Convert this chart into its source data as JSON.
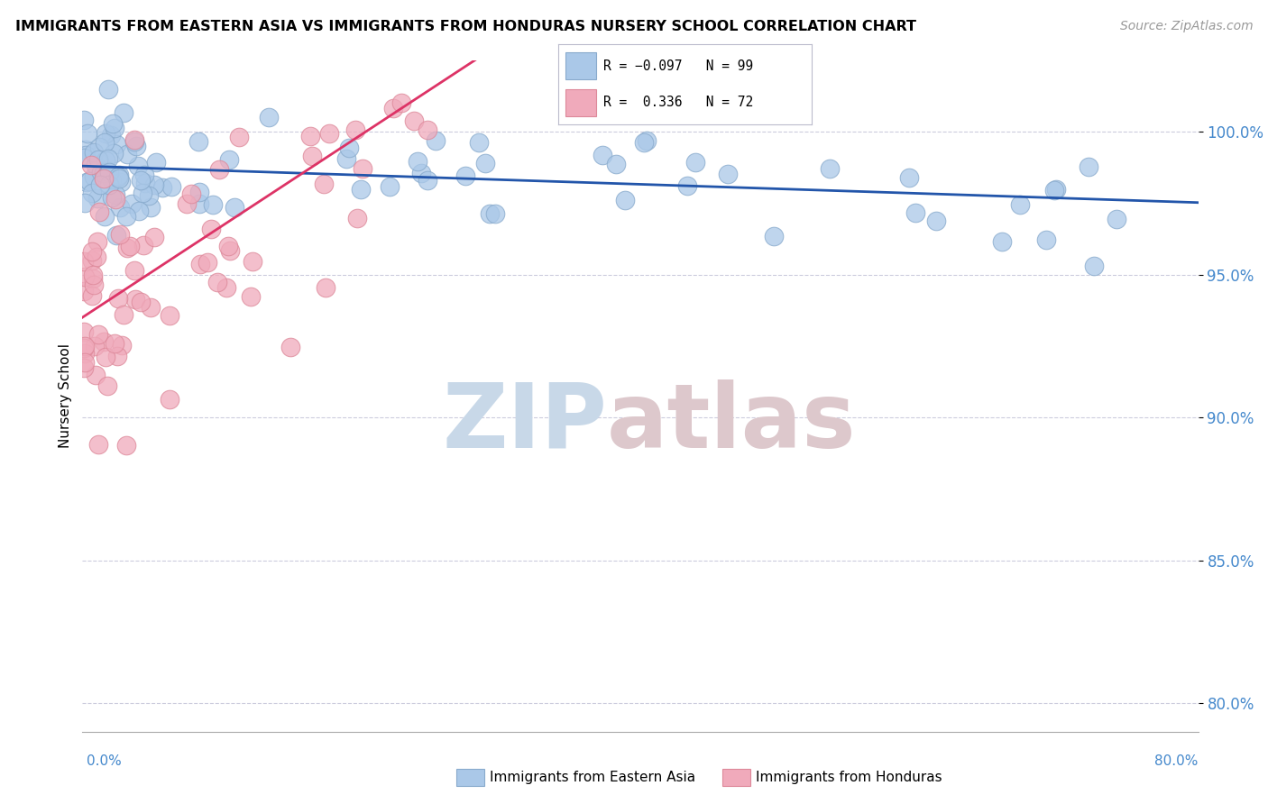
{
  "title": "IMMIGRANTS FROM EASTERN ASIA VS IMMIGRANTS FROM HONDURAS NURSERY SCHOOL CORRELATION CHART",
  "source": "Source: ZipAtlas.com",
  "ylabel": "Nursery School",
  "y_ticks": [
    80.0,
    85.0,
    90.0,
    95.0,
    100.0
  ],
  "x_range": [
    0.0,
    80.0
  ],
  "y_range": [
    79.0,
    102.5
  ],
  "legend_r1": "R = −0.097",
  "legend_n1": "N = 99",
  "legend_r2": "R =  0.336",
  "legend_n2": "N = 72",
  "blue_color": "#aac8e8",
  "pink_color": "#f0aabb",
  "blue_edge": "#88aacc",
  "pink_edge": "#dd8899",
  "line_blue": "#2255aa",
  "line_pink": "#dd3366",
  "grid_color": "#ccccdd",
  "watermark_zip_color": "#c8d8e8",
  "watermark_atlas_color": "#ddc8cc",
  "blue_intercept": 98.8,
  "blue_slope": -0.016,
  "pink_intercept": 93.5,
  "pink_slope": 0.32,
  "n_blue": 99,
  "n_pink": 72
}
